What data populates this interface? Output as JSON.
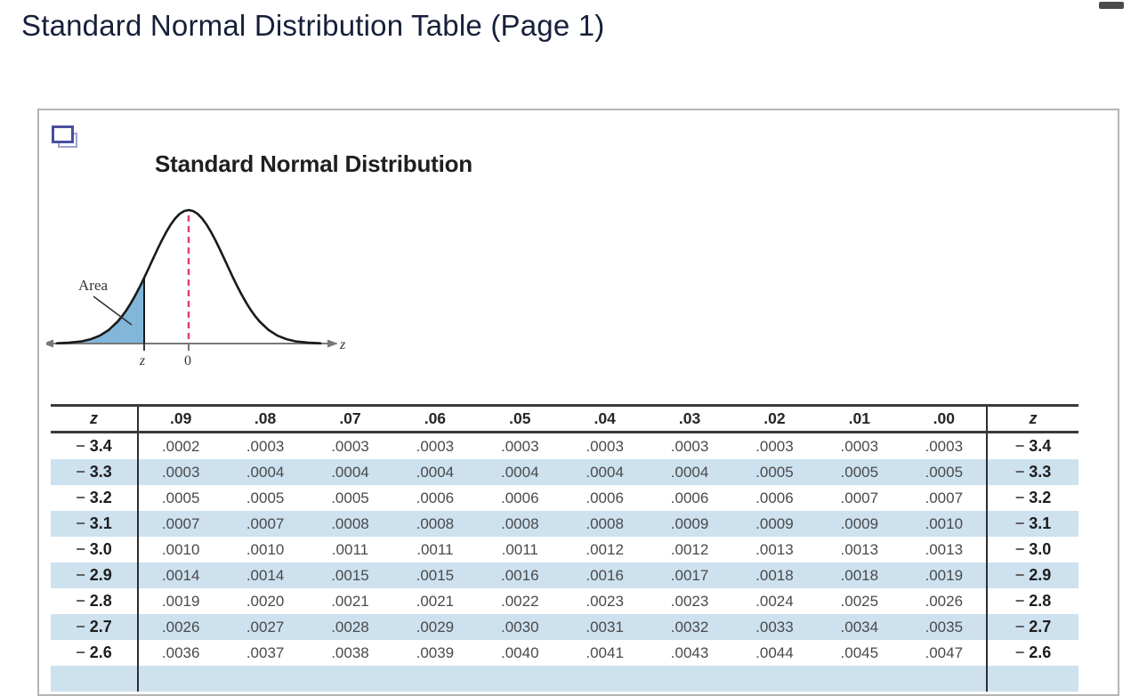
{
  "header": {
    "title": "Standard Normal Distribution Table (Page 1)"
  },
  "panel": {
    "figure": {
      "title": "Standard Normal Distribution",
      "area_label": "Area",
      "axis_end_label": "z",
      "z_tick_label": "z",
      "zero_tick_label": "0",
      "colors": {
        "shaded_area": "#82b7da",
        "dashed_mean_line": "#e33f76",
        "curve": "#1a1a1a",
        "axis": "#787878"
      }
    },
    "table": {
      "header": {
        "z_left": "z",
        "cols": [
          ".09",
          ".08",
          ".07",
          ".06",
          ".05",
          ".04",
          ".03",
          ".02",
          ".01",
          ".00"
        ],
        "z_right": "z"
      },
      "rows": [
        {
          "sign": "−",
          "z": "3.4",
          "values": [
            ".0002",
            ".0003",
            ".0003",
            ".0003",
            ".0003",
            ".0003",
            ".0003",
            ".0003",
            ".0003",
            ".0003"
          ]
        },
        {
          "sign": "−",
          "z": "3.3",
          "values": [
            ".0003",
            ".0004",
            ".0004",
            ".0004",
            ".0004",
            ".0004",
            ".0004",
            ".0005",
            ".0005",
            ".0005"
          ]
        },
        {
          "sign": "−",
          "z": "3.2",
          "values": [
            ".0005",
            ".0005",
            ".0005",
            ".0006",
            ".0006",
            ".0006",
            ".0006",
            ".0006",
            ".0007",
            ".0007"
          ]
        },
        {
          "sign": "−",
          "z": "3.1",
          "values": [
            ".0007",
            ".0007",
            ".0008",
            ".0008",
            ".0008",
            ".0008",
            ".0009",
            ".0009",
            ".0009",
            ".0010"
          ]
        },
        {
          "sign": "−",
          "z": "3.0",
          "values": [
            ".0010",
            ".0010",
            ".0011",
            ".0011",
            ".0011",
            ".0012",
            ".0012",
            ".0013",
            ".0013",
            ".0013"
          ]
        },
        {
          "sign": "−",
          "z": "2.9",
          "values": [
            ".0014",
            ".0014",
            ".0015",
            ".0015",
            ".0016",
            ".0016",
            ".0017",
            ".0018",
            ".0018",
            ".0019"
          ]
        },
        {
          "sign": "−",
          "z": "2.8",
          "values": [
            ".0019",
            ".0020",
            ".0021",
            ".0021",
            ".0022",
            ".0023",
            ".0023",
            ".0024",
            ".0025",
            ".0026"
          ]
        },
        {
          "sign": "−",
          "z": "2.7",
          "values": [
            ".0026",
            ".0027",
            ".0028",
            ".0029",
            ".0030",
            ".0031",
            ".0032",
            ".0033",
            ".0034",
            ".0035"
          ]
        },
        {
          "sign": "−",
          "z": "2.6",
          "values": [
            ".0036",
            ".0037",
            ".0038",
            ".0039",
            ".0040",
            ".0041",
            ".0043",
            ".0044",
            ".0045",
            ".0047"
          ]
        }
      ],
      "stripe_color": "#cde1ef"
    }
  }
}
